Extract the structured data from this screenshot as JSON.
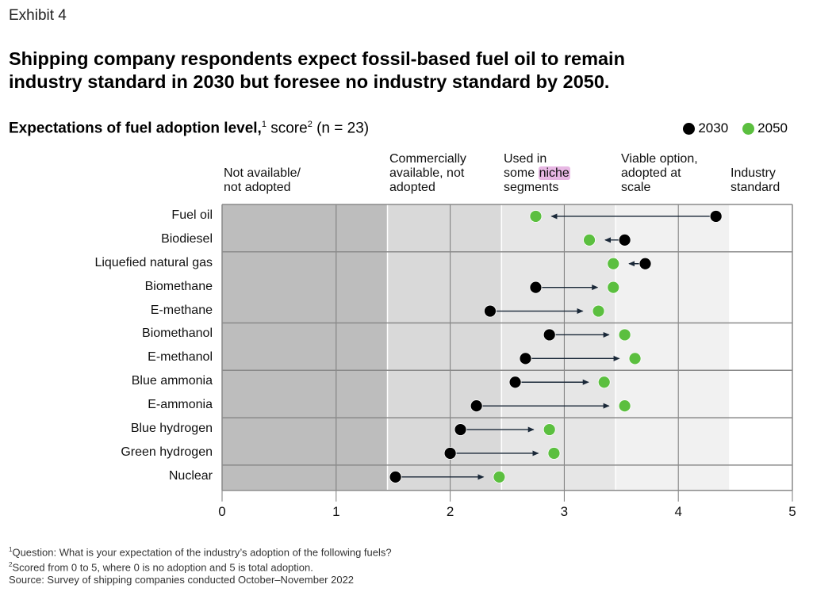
{
  "header": {
    "exhibit": "Exhibit 4",
    "title_line1": "Shipping company respondents expect fossil-based fuel oil to remain",
    "title_line2": "industry standard in 2030 but foresee no industry standard by 2050.",
    "subtitle_bold": "Expectations of fuel adoption level,",
    "subtitle_sup1": "1",
    "subtitle_rest": " score",
    "subtitle_sup2": "2",
    "subtitle_n": " (n = 23)"
  },
  "legend": [
    {
      "label": "2030",
      "color": "#000000"
    },
    {
      "label": "2050",
      "color": "#5bbf3f"
    }
  ],
  "zones": [
    {
      "label_lines": [
        "Not available/",
        "not adopted"
      ],
      "from": 0,
      "to": 1.45,
      "color": "#bdbdbd"
    },
    {
      "label_lines": [
        "Commercially",
        "available, not",
        "adopted"
      ],
      "from": 1.45,
      "to": 2.45,
      "color": "#d9d9d9"
    },
    {
      "label_pre": [
        "Used in",
        "some "
      ],
      "label_highlight": "niche",
      "label_post": "segments",
      "from": 2.45,
      "to": 3.45,
      "color": "#e6e6e6"
    },
    {
      "label_lines": [
        "Viable option,",
        "adopted at",
        "scale"
      ],
      "from": 3.45,
      "to": 4.45,
      "color": "#f1f1f1"
    },
    {
      "label_lines": [
        "Industry",
        "standard"
      ],
      "from": 4.45,
      "to": 5,
      "color": "#ffffff"
    }
  ],
  "chart_data": {
    "type": "dumbbell",
    "title": "Expectations of fuel adoption level, score (n = 23)",
    "xlabel": "",
    "ylabel": "",
    "xlim": [
      0,
      5
    ],
    "xticks": [
      0,
      1,
      2,
      3,
      4,
      5
    ],
    "grid": true,
    "legend_position": "top-right",
    "categories": [
      "Fuel oil",
      "Biodiesel",
      "Liquefied natural gas",
      "Biomethane",
      "E-methane",
      "Biomethanol",
      "E-methanol",
      "Blue ammonia",
      "E-ammonia",
      "Blue hydrogen",
      "Green hydrogen",
      "Nuclear"
    ],
    "groups": [
      [
        "Fuel oil",
        "Biodiesel"
      ],
      [
        "Liquefied natural gas",
        "Biomethane",
        "E-methane"
      ],
      [
        "Biomethanol",
        "E-methanol"
      ],
      [
        "Blue ammonia",
        "E-ammonia"
      ],
      [
        "Blue hydrogen",
        "Green hydrogen"
      ],
      [
        "Nuclear"
      ]
    ],
    "series": [
      {
        "name": "2030",
        "color": "#000000",
        "values": [
          4.33,
          3.53,
          3.71,
          2.75,
          2.35,
          2.87,
          2.66,
          2.57,
          2.23,
          2.09,
          2.0,
          1.52
        ]
      },
      {
        "name": "2050",
        "color": "#5bbf3f",
        "values": [
          2.75,
          3.22,
          3.43,
          3.43,
          3.3,
          3.53,
          3.62,
          3.35,
          3.53,
          2.87,
          2.91,
          2.43
        ]
      }
    ]
  },
  "footnotes": {
    "note1_sup": "1",
    "note1": "Question: What is your expectation of the industry’s adoption of the following fuels?",
    "note2_sup": "2",
    "note2": "Scored from 0 to 5, where 0 is no adoption and 5 is total adoption.",
    "source": " Source: Survey of shipping companies conducted October–November 2022"
  }
}
